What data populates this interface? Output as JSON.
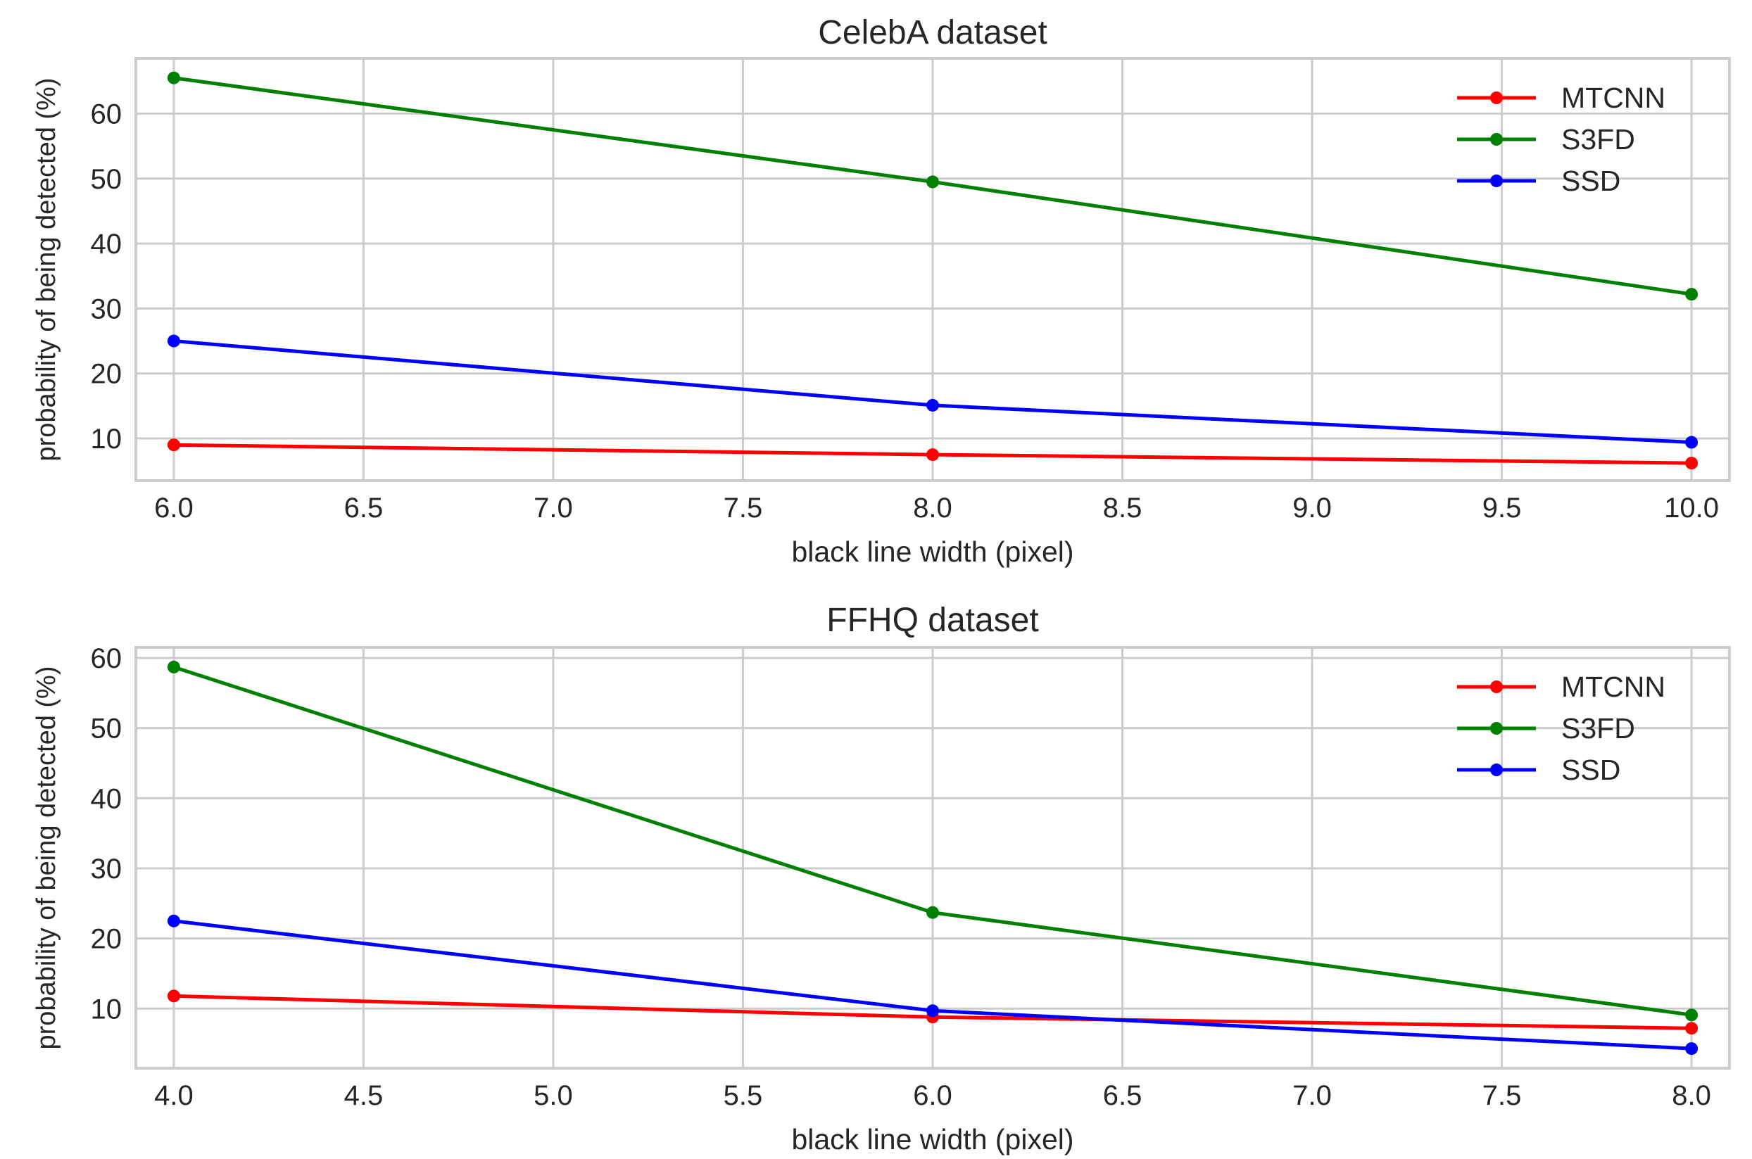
{
  "chart_data": [
    {
      "type": "line",
      "title": "CelebA dataset",
      "xlabel": "black line width (pixel)",
      "ylabel": "probability of being detected (%)",
      "x": [
        6.0,
        8.0,
        10.0
      ],
      "xlim": [
        5.9,
        10.1
      ],
      "ylim": [
        3.5,
        68.5
      ],
      "xticks": [
        "6.0",
        "6.5",
        "7.0",
        "7.5",
        "8.0",
        "8.5",
        "9.0",
        "9.5",
        "10.0"
      ],
      "yticks": [
        "10",
        "20",
        "30",
        "40",
        "50",
        "60"
      ],
      "grid": true,
      "legend_position": "top-right",
      "series": [
        {
          "name": "MTCNN",
          "color": "#ff0000",
          "values": [
            9.0,
            7.5,
            6.2
          ]
        },
        {
          "name": "S3FD",
          "color": "#008000",
          "values": [
            65.5,
            49.5,
            32.2
          ]
        },
        {
          "name": "SSD",
          "color": "#0000ff",
          "values": [
            25.0,
            15.1,
            9.4
          ]
        }
      ]
    },
    {
      "type": "line",
      "title": "FFHQ dataset",
      "xlabel": "black line width (pixel)",
      "ylabel": "probability of being detected (%)",
      "x": [
        4.0,
        6.0,
        8.0
      ],
      "xlim": [
        3.9,
        8.1
      ],
      "ylim": [
        1.5,
        61.5
      ],
      "xticks": [
        "4.0",
        "4.5",
        "5.0",
        "5.5",
        "6.0",
        "6.5",
        "7.0",
        "7.5",
        "8.0"
      ],
      "yticks": [
        "10",
        "20",
        "30",
        "40",
        "50",
        "60"
      ],
      "grid": true,
      "legend_position": "top-right",
      "series": [
        {
          "name": "MTCNN",
          "color": "#ff0000",
          "values": [
            11.8,
            8.8,
            7.2
          ]
        },
        {
          "name": "S3FD",
          "color": "#008000",
          "values": [
            58.7,
            23.7,
            9.1
          ]
        },
        {
          "name": "SSD",
          "color": "#0000ff",
          "values": [
            22.5,
            9.7,
            4.3
          ]
        }
      ]
    }
  ]
}
